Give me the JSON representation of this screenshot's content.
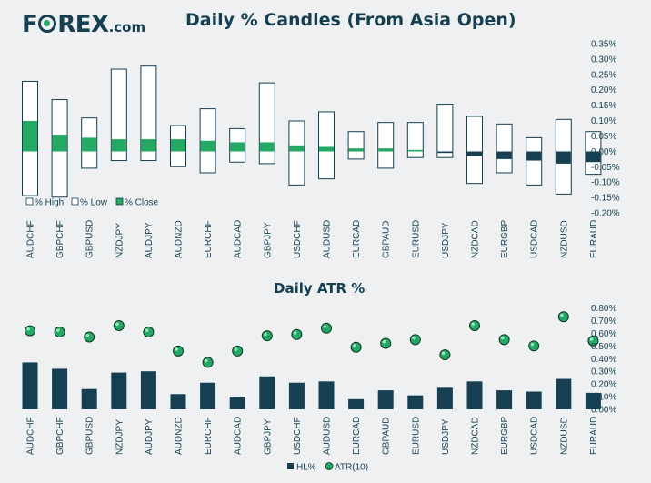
{
  "brand": {
    "logo_prefix": "F",
    "logo_suffix": "REX",
    "logo_domain": ".com",
    "logo_dark": "#163f52",
    "logo_accent": "#23a964"
  },
  "chart_data": [
    {
      "type": "bar",
      "subtype": "floating-range",
      "title": "Daily % Candles (From Asia Open)",
      "categories": [
        "AUDCHF",
        "GBPCHF",
        "GBPUSD",
        "NZDJPY",
        "AUDJPY",
        "AUDNZD",
        "EURCHF",
        "AUDCAD",
        "GBPJPY",
        "USDCHF",
        "AUDUSD",
        "EURCAD",
        "GBPAUD",
        "EURUSD",
        "USDJPY",
        "NZDCAD",
        "EURGBP",
        "USDCAD",
        "NZDUSD",
        "EURAUD"
      ],
      "series": [
        {
          "name": "% High",
          "color": "#ffffff",
          "values": [
            0.23,
            0.17,
            0.11,
            0.27,
            0.28,
            0.085,
            0.14,
            0.075,
            0.225,
            0.1,
            0.13,
            0.065,
            0.095,
            0.095,
            0.155,
            0.115,
            0.09,
            0.045,
            0.105,
            0.065
          ]
        },
        {
          "name": "% Low",
          "color": "#ffffff",
          "values": [
            -0.145,
            -0.15,
            -0.055,
            -0.03,
            -0.03,
            -0.05,
            -0.07,
            -0.035,
            -0.04,
            -0.11,
            -0.09,
            -0.025,
            -0.055,
            -0.02,
            -0.02,
            -0.105,
            -0.07,
            -0.11,
            -0.14,
            -0.075
          ]
        },
        {
          "name": "% Close",
          "color": "#23a964",
          "negative_color": "#163f52",
          "values": [
            0.1,
            0.055,
            0.045,
            0.04,
            0.04,
            0.04,
            0.035,
            0.03,
            0.03,
            0.02,
            0.015,
            0.01,
            0.01,
            0.005,
            -0.005,
            -0.015,
            -0.025,
            -0.03,
            -0.04,
            -0.035
          ]
        }
      ],
      "y_ticks": [
        "0.35%",
        "0.30%",
        "0.25%",
        "0.20%",
        "0.15%",
        "0.10%",
        "0.05%",
        "0.00%",
        "-0.05%",
        "-0.10%",
        "-0.15%",
        "-0.20%"
      ],
      "ylim": [
        -0.2,
        0.35
      ],
      "y_axis_side": "right",
      "legend": [
        "% High",
        "% Low",
        "% Close"
      ],
      "legend_position": "bottom-left",
      "grid": false
    },
    {
      "type": "bar",
      "title": "Daily ATR %",
      "categories": [
        "AUDCHF",
        "GBPCHF",
        "GBPUSD",
        "NZDJPY",
        "AUDJPY",
        "AUDNZD",
        "EURCHF",
        "AUDCAD",
        "GBPJPY",
        "USDCHF",
        "AUDUSD",
        "EURCAD",
        "GBPAUD",
        "EURUSD",
        "USDJPY",
        "NZDCAD",
        "EURGBP",
        "USDCAD",
        "NZDUSD",
        "EURAUD"
      ],
      "series": [
        {
          "name": "HL%",
          "kind": "bar",
          "color": "#163f52",
          "values": [
            0.37,
            0.32,
            0.16,
            0.29,
            0.3,
            0.12,
            0.21,
            0.1,
            0.26,
            0.21,
            0.22,
            0.08,
            0.15,
            0.11,
            0.17,
            0.22,
            0.15,
            0.14,
            0.24,
            0.13
          ]
        },
        {
          "name": "ATR(10)",
          "kind": "marker",
          "color": "#23a964",
          "values": [
            0.62,
            0.61,
            0.57,
            0.66,
            0.61,
            0.46,
            0.37,
            0.46,
            0.58,
            0.59,
            0.64,
            0.49,
            0.52,
            0.55,
            0.43,
            0.66,
            0.55,
            0.5,
            0.73,
            0.54
          ]
        }
      ],
      "y_ticks": [
        "0.80%",
        "0.70%",
        "0.60%",
        "0.50%",
        "0.40%",
        "0.30%",
        "0.20%",
        "0.10%",
        "0.00%"
      ],
      "ylim": [
        0,
        0.8
      ],
      "y_axis_side": "right",
      "legend": [
        "HL%",
        "ATR(10)"
      ],
      "legend_position": "bottom-center",
      "grid": false
    }
  ]
}
